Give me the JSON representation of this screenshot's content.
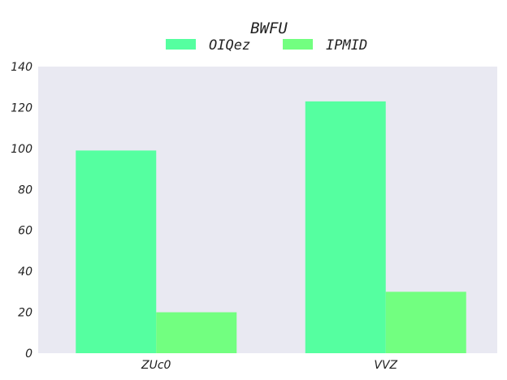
{
  "chart_data": {
    "type": "bar",
    "title": "BWFU",
    "categories": [
      "ZUc0",
      "VVZ"
    ],
    "series": [
      {
        "name": "OIQez",
        "values": [
          99,
          123
        ],
        "color": "#55ffa0"
      },
      {
        "name": "IPMID",
        "values": [
          20,
          30
        ],
        "color": "#72ff80"
      }
    ],
    "ylim": [
      0,
      140
    ],
    "yticks": [
      0,
      20,
      40,
      60,
      80,
      100,
      120,
      140
    ],
    "xlabel": "",
    "ylabel": "",
    "grid": false,
    "legend_position": "top-center",
    "background": "#e9e9f2"
  }
}
